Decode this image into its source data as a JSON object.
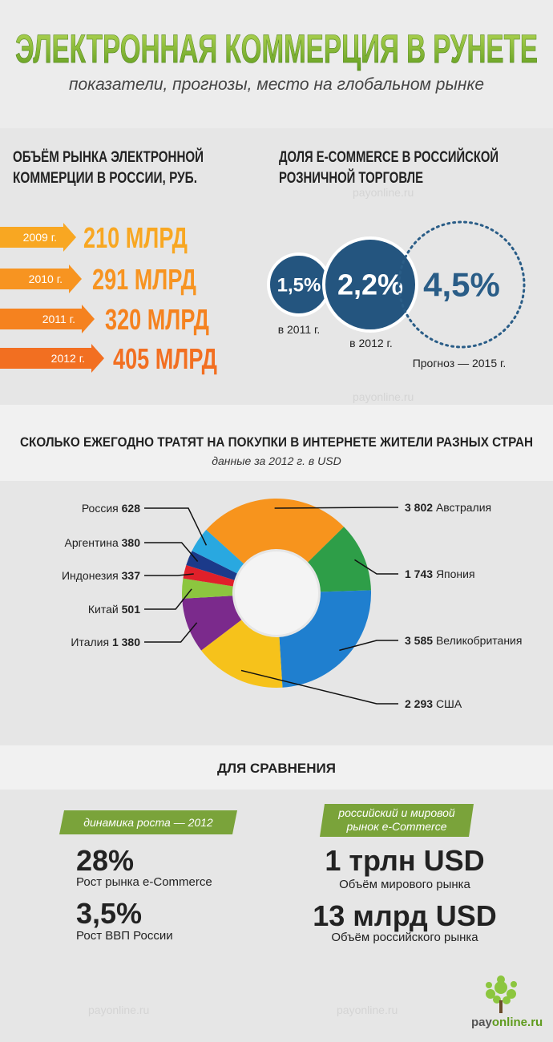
{
  "header": {
    "title": "ЭЛЕКТРОННАЯ КОММЕРЦИЯ В РУНЕТЕ",
    "subtitle": "показатели, прогнозы, место на глобальном рынке"
  },
  "market": {
    "title_lines": [
      "ОБЪЁМ РЫНКА ЭЛЕКТРОННОЙ",
      "КОММЕРЦИИ В РОССИИ, РУБ."
    ],
    "items": [
      {
        "year": "2009 г.",
        "value": "210 МЛРД"
      },
      {
        "year": "2010 г.",
        "value": "291 МЛРД"
      },
      {
        "year": "2011 г.",
        "value": "320 МЛРД"
      },
      {
        "year": "2012 г.",
        "value": "405 МЛРД"
      }
    ]
  },
  "share": {
    "title_lines": [
      "ДОЛЯ E-COMMERCE В РОССИЙСКОЙ",
      "РОЗНИЧНОЙ ТОРГОВЛЕ"
    ],
    "items": [
      {
        "value": "1,5%",
        "label": "в 2011 г."
      },
      {
        "value": "2,2%",
        "label": "в 2012 г."
      },
      {
        "value": "4,5%",
        "label": "Прогноз — 2015 г."
      }
    ]
  },
  "chart_data": {
    "type": "pie",
    "title": "СКОЛЬКО ЕЖЕГОДНО ТРАТЯТ НА ПОКУПКИ В ИНТЕРНЕТЕ ЖИТЕЛИ РАЗНЫХ СТРАН",
    "subtitle": "данные за 2012 г. в USD",
    "categories": [
      "Австралия",
      "Япония",
      "Великобритания",
      "США",
      "Италия",
      "Китай",
      "Индонезия",
      "Аргентина",
      "Россия"
    ],
    "values": [
      3802,
      1743,
      3585,
      2293,
      1380,
      501,
      337,
      380,
      628
    ],
    "value_labels": [
      "3 802",
      "1 743",
      "3 585",
      "2 293",
      "1 380",
      "501",
      "337",
      "380",
      "628"
    ],
    "colors": [
      "#f7941d",
      "#2e9e48",
      "#1f7fcf",
      "#f6c21b",
      "#7b2a8c",
      "#8cc63f",
      "#e0202a",
      "#1b3a8a",
      "#29a8e0"
    ]
  },
  "comparison": {
    "title": "ДЛЯ СРАВНЕНИЯ",
    "left": {
      "tag": "динамика роста — 2012",
      "items": [
        {
          "value": "28%",
          "label": "Рост рынка e-Commerce"
        },
        {
          "value": "3,5%",
          "label": "Рост ВВП России"
        }
      ]
    },
    "right": {
      "tag_lines": [
        "российский и мировой",
        "рынок e-Commerce"
      ],
      "items": [
        {
          "value": "1 трлн USD",
          "label": "Объём мирового рынка"
        },
        {
          "value": "13 млрд USD",
          "label": "Объём российского рынка"
        }
      ]
    }
  },
  "watermark": "payonline.ru",
  "logo": {
    "part1": "pay",
    "part2": "online.ru"
  }
}
